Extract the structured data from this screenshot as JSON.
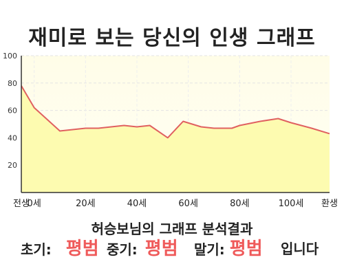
{
  "title": "재미로 보는 당신의 인생 그래프",
  "chart_data": {
    "type": "area",
    "title": "재미로 보는 당신의 인생 그래프",
    "ylim": [
      0,
      100
    ],
    "y_ticks": [
      20,
      40,
      60,
      80,
      100
    ],
    "x_tick_labels": [
      {
        "x": -5,
        "label": "전생"
      },
      {
        "x": 0,
        "label": "0세"
      },
      {
        "x": 20,
        "label": "20세"
      },
      {
        "x": 40,
        "label": "40세"
      },
      {
        "x": 60,
        "label": "60세"
      },
      {
        "x": 80,
        "label": "80세"
      },
      {
        "x": 100,
        "label": "100세"
      },
      {
        "x": 115,
        "label": "환생"
      }
    ],
    "xlim": [
      -5,
      115
    ],
    "grid": true,
    "series": [
      {
        "x": [
          -5,
          0,
          10,
          15,
          20,
          25,
          30,
          35,
          40,
          45,
          52,
          58,
          65,
          70,
          77,
          80,
          88,
          95,
          100,
          108,
          115
        ],
        "values": [
          78,
          62,
          45,
          46,
          47,
          47,
          48,
          49,
          48,
          49,
          40,
          52,
          48,
          47,
          47,
          49,
          52,
          54,
          51,
          47,
          43
        ],
        "color": "#e06060",
        "fill": "#fdfbb0"
      }
    ]
  },
  "summary": {
    "name_line": "허승보님의 그래프 분석결과",
    "early_label": "초기:",
    "early_value": "평범",
    "middle_label": "중기:",
    "middle_value": "평범",
    "late_label": "말기:",
    "late_value": "평범",
    "ending": "입니다"
  }
}
